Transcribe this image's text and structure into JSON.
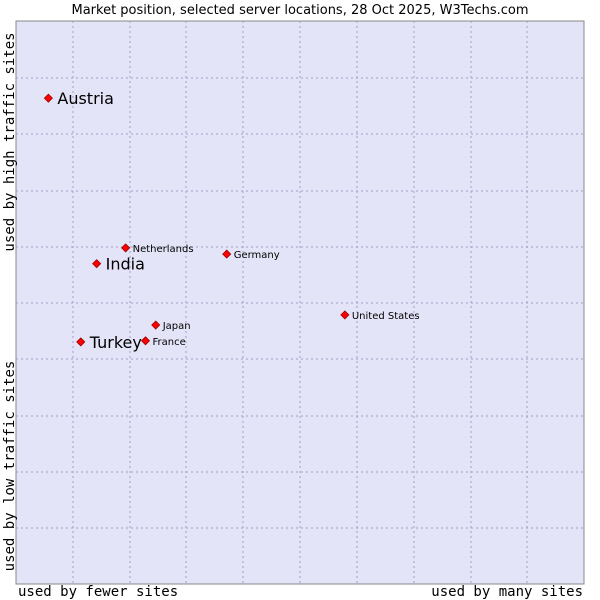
{
  "chart_data": {
    "type": "scatter",
    "title": "Market position, selected server locations, 28 Oct 2025, W3Techs.com",
    "y_axis": {
      "top_label": "used by high traffic sites",
      "bottom_label": "used by low traffic sites"
    },
    "x_axis": {
      "left_label": "used by fewer sites",
      "right_label": "used by many sites"
    },
    "xlim": [
      0,
      100
    ],
    "ylim": [
      0,
      100
    ],
    "grid": true,
    "colors": {
      "background": "#e4e4f8",
      "grid": "#a0a0c8",
      "point": "#ff0000",
      "point_edge": "#990000"
    },
    "points": [
      {
        "label": "Austria",
        "x": 5.7,
        "y": 86.3,
        "emphasis": true
      },
      {
        "label": "India",
        "x": 14.2,
        "y": 56.9,
        "emphasis": true
      },
      {
        "label": "Turkey",
        "x": 11.4,
        "y": 43.0,
        "emphasis": true
      },
      {
        "label": "Netherlands",
        "x": 19.3,
        "y": 59.7,
        "emphasis": false
      },
      {
        "label": "Germany",
        "x": 37.1,
        "y": 58.6,
        "emphasis": false
      },
      {
        "label": "United States",
        "x": 57.9,
        "y": 47.8,
        "emphasis": false
      },
      {
        "label": "Japan",
        "x": 24.6,
        "y": 46.0,
        "emphasis": false
      },
      {
        "label": "France",
        "x": 22.8,
        "y": 43.2,
        "emphasis": false
      }
    ]
  }
}
